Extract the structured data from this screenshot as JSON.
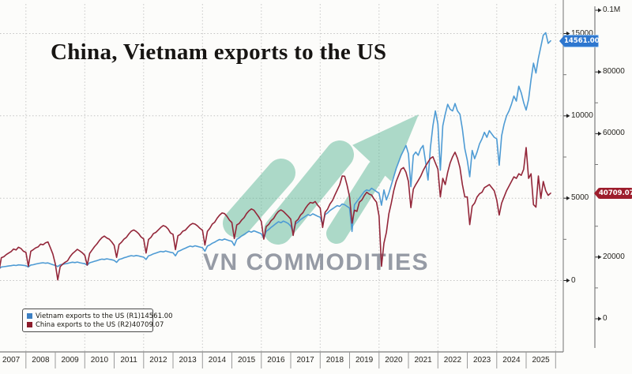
{
  "title": "China, Vietnam exports to the US",
  "watermark": {
    "text": "VN COMMODITIES",
    "arrow_color": "#57b492",
    "text_color": "#8e939e"
  },
  "legend": {
    "items": [
      {
        "label": "Vietnam exports to the US (R1)",
        "value": "14561.00",
        "swatch_color": "#3d7fc2"
      },
      {
        "label": "China exports to the US (R2)",
        "value": "40709.07",
        "swatch_color": "#8c1c2b"
      }
    ]
  },
  "x_axis": {
    "years": [
      "2007",
      "2008",
      "2009",
      "2010",
      "2011",
      "2012",
      "2013",
      "2014",
      "2015",
      "2016",
      "2017",
      "2018",
      "2019",
      "2020",
      "2021",
      "2022",
      "2023",
      "2024",
      "2025"
    ]
  },
  "right_axis_inner": {
    "name": "R1",
    "ticks": [
      {
        "value": 15000,
        "label": "15000"
      },
      {
        "value": 10000,
        "label": "10000"
      },
      {
        "value": 5000,
        "label": "5000"
      },
      {
        "value": 0,
        "label": "0"
      }
    ],
    "minor_tick_values": [
      2500,
      7500,
      12500
    ],
    "badge": {
      "text": "14561.00",
      "value": 14561.0,
      "color": "#2e77cf"
    }
  },
  "right_axis_outer": {
    "name": "R2",
    "ticks": [
      {
        "value": 100000,
        "label": "0.1M"
      },
      {
        "value": 80000,
        "label": "80000"
      },
      {
        "value": 60000,
        "label": "60000"
      },
      {
        "value": 20000,
        "label": "20000"
      },
      {
        "value": 0,
        "label": "0"
      }
    ],
    "minor_tick_values": [
      10000,
      30000,
      50000,
      70000,
      90000
    ],
    "badge": {
      "text": "40709.07",
      "value": 40709.07,
      "color": "#9d1d2c"
    }
  },
  "chart_data": {
    "type": "line",
    "title": "China, Vietnam exports to the US",
    "x_unit": "month",
    "x_start": "2007-01",
    "x_end": "2025-11",
    "grid": "dotted",
    "legend_position": "bottom-left",
    "axis_R1": {
      "side": "right-inner",
      "range": [
        0,
        15600
      ],
      "ticks": [
        0,
        5000,
        10000,
        15000
      ]
    },
    "axis_R2": {
      "side": "right-outer",
      "range": [
        0,
        102000
      ],
      "ticks": [
        0,
        20000,
        40000,
        60000,
        80000,
        100000
      ],
      "top_tick_label": "0.1M"
    },
    "series": [
      {
        "name": "Vietnam exports to the US (R1)",
        "axis": "R1",
        "color": "#4e9bd4",
        "last_value": 14561.0,
        "values": [
          780,
          700,
          820,
          840,
          860,
          880,
          900,
          930,
          910,
          950,
          940,
          920,
          900,
          820,
          940,
          960,
          1000,
          1030,
          1060,
          1080,
          1050,
          1070,
          1010,
          960,
          920,
          850,
          960,
          980,
          1010,
          1040,
          1080,
          1110,
          1090,
          1120,
          1080,
          1050,
          1020,
          930,
          1080,
          1120,
          1170,
          1210,
          1260,
          1300,
          1280,
          1320,
          1290,
          1260,
          1220,
          1100,
          1280,
          1320,
          1380,
          1420,
          1470,
          1510,
          1480,
          1520,
          1490,
          1450,
          1420,
          1280,
          1500,
          1550,
          1620,
          1670,
          1720,
          1770,
          1740,
          1790,
          1750,
          1710,
          1680,
          1500,
          1760,
          1820,
          1900,
          1960,
          2030,
          2090,
          2050,
          2110,
          2070,
          2030,
          1990,
          1780,
          2090,
          2160,
          2260,
          2330,
          2420,
          2490,
          2450,
          2520,
          2470,
          2420,
          2380,
          2130,
          2500,
          2590,
          2710,
          2800,
          2900,
          2990,
          2940,
          3020,
          2960,
          2900,
          2840,
          2550,
          2990,
          3090,
          3230,
          3340,
          3460,
          3570,
          3510,
          3610,
          3540,
          3460,
          3300,
          2900,
          3450,
          3550,
          3700,
          3800,
          3900,
          4000,
          3950,
          4050,
          3980,
          3900,
          3850,
          3400,
          4000,
          4100,
          4250,
          4350,
          4450,
          4550,
          4500,
          4650,
          4600,
          4500,
          4400,
          2980,
          4600,
          4800,
          5000,
          5200,
          5400,
          5500,
          5450,
          5600,
          5500,
          5400,
          5300,
          4570,
          5500,
          4900,
          5300,
          5800,
          6300,
          6800,
          7200,
          7600,
          7900,
          8200,
          7700,
          5700,
          7600,
          7800,
          7600,
          8000,
          8200,
          7200,
          6100,
          8100,
          9400,
          10300,
          9500,
          6700,
          9400,
          10100,
          10700,
          10400,
          10300,
          10750,
          10300,
          10100,
          9200,
          8000,
          7300,
          6300,
          7900,
          7400,
          7800,
          8300,
          8600,
          9000,
          8700,
          9100,
          8900,
          8700,
          8600,
          7000,
          8800,
          9500,
          10000,
          10300,
          10700,
          11200,
          10900,
          11800,
          11400,
          10800,
          10350,
          11000,
          12200,
          13200,
          12600,
          13500,
          14200,
          14900,
          15050,
          14400,
          14561
        ]
      },
      {
        "name": "China exports to the US (R2)",
        "axis": "R2",
        "color": "#932639",
        "last_value": 40709.07,
        "values": [
          19500,
          15200,
          19800,
          20100,
          20800,
          21300,
          21800,
          22600,
          22300,
          23200,
          22800,
          21900,
          21500,
          17000,
          21900,
          22400,
          23000,
          23300,
          24200,
          24000,
          24600,
          24900,
          23000,
          21000,
          17800,
          12600,
          16900,
          17700,
          18300,
          18800,
          20100,
          21100,
          21800,
          22500,
          22000,
          21400,
          20600,
          17400,
          21200,
          22300,
          23400,
          24300,
          25400,
          26300,
          26800,
          26200,
          25800,
          24900,
          23800,
          19900,
          24100,
          24800,
          25800,
          26400,
          27500,
          28400,
          28800,
          28300,
          27600,
          26500,
          25900,
          21300,
          25700,
          26400,
          27600,
          28000,
          28800,
          29600,
          30200,
          29900,
          29100,
          27800,
          27400,
          22400,
          26900,
          27400,
          28400,
          28700,
          29600,
          30400,
          30900,
          30700,
          30100,
          29300,
          28700,
          23900,
          28300,
          29300,
          30700,
          31300,
          32600,
          33600,
          34300,
          34100,
          33200,
          32000,
          31200,
          26000,
          30400,
          30900,
          32000,
          32800,
          34100,
          35000,
          35600,
          35200,
          34100,
          33000,
          31500,
          25800,
          29900,
          30600,
          31800,
          32500,
          33800,
          34800,
          35300,
          34800,
          34000,
          33200,
          32300,
          27000,
          31500,
          32200,
          33600,
          34400,
          35800,
          36900,
          37700,
          37500,
          38000,
          36800,
          35900,
          29600,
          34500,
          35500,
          37200,
          38300,
          40100,
          41800,
          43500,
          46300,
          46200,
          43200,
          39500,
          31000,
          35200,
          34800,
          37800,
          38500,
          39900,
          41000,
          40400,
          40100,
          38800,
          37800,
          33300,
          17000,
          24500,
          28000,
          34000,
          37500,
          41500,
          44500,
          46500,
          48500,
          49000,
          47500,
          44500,
          36000,
          42000,
          43500,
          44800,
          46200,
          48000,
          49500,
          50800,
          52000,
          52500,
          50500,
          48500,
          39500,
          45500,
          43500,
          47500,
          50500,
          52500,
          54000,
          52000,
          49000,
          43500,
          39500,
          39500,
          30500,
          36500,
          37500,
          39500,
          40500,
          41000,
          42500,
          43000,
          43500,
          42500,
          41500,
          38500,
          33600,
          37500,
          39500,
          41500,
          43000,
          44500,
          46000,
          45500,
          47000,
          46500,
          48500,
          55500,
          45500,
          47000,
          37000,
          36200,
          46300,
          39000,
          44500,
          41500,
          40000,
          40709
        ]
      }
    ]
  }
}
